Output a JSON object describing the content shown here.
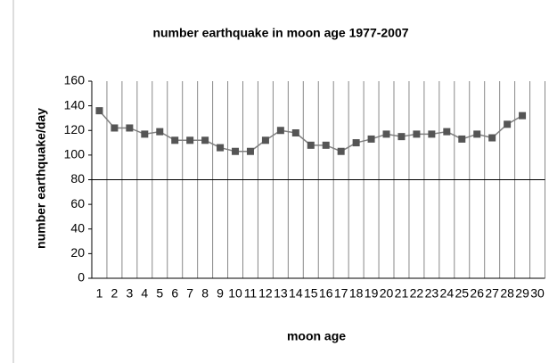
{
  "chart_data": {
    "type": "line",
    "title": "number earthquake in moon age 1977-2007",
    "x_label": "moon age",
    "y_label": "number earthquake/day",
    "categories": [
      "1",
      "2",
      "3",
      "4",
      "5",
      "6",
      "7",
      "8",
      "9",
      "10",
      "11",
      "12",
      "13",
      "14",
      "15",
      "16",
      "17",
      "18",
      "19",
      "20",
      "21",
      "22",
      "23",
      "24",
      "25",
      "26",
      "27",
      "28",
      "29",
      "30"
    ],
    "series": [
      {
        "name": "number earthquake/day",
        "color": "#808080",
        "marker_color": "#555555",
        "values": [
          136,
          122,
          122,
          117,
          119,
          112,
          112,
          112,
          106,
          103,
          103,
          112,
          120,
          118,
          108,
          108,
          103,
          110,
          113,
          117,
          115,
          117,
          117,
          119,
          113,
          117,
          114,
          125,
          132,
          null
        ]
      }
    ],
    "ylim": [
      0,
      160
    ],
    "yticks": [
      0,
      20,
      40,
      60,
      80,
      100,
      120,
      140,
      160
    ],
    "reference_line": 80,
    "x_grid": true
  }
}
